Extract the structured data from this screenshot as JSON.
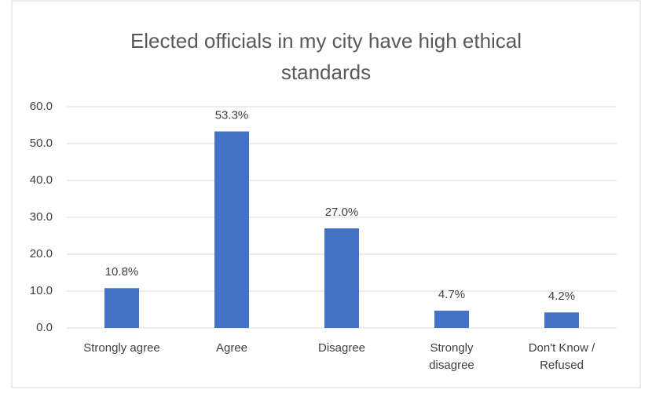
{
  "chart_data": {
    "type": "bar",
    "title": "Elected officials in my city have high ethical standards",
    "categories": [
      "Strongly agree",
      "Agree",
      "Disagree",
      "Strongly disagree",
      "Don't Know / Refused"
    ],
    "values": [
      10.8,
      53.3,
      27.0,
      4.7,
      4.2
    ],
    "value_labels": [
      "10.8%",
      "53.3%",
      "27.0%",
      "4.7%",
      "4.2%"
    ],
    "color": "#4472c4",
    "ylim": [
      0,
      60
    ],
    "yticks": [
      {
        "value": 0,
        "label": "0.0"
      },
      {
        "value": 10,
        "label": "10.0"
      },
      {
        "value": 20,
        "label": "20.0"
      },
      {
        "value": 30,
        "label": "30.0"
      },
      {
        "value": 40,
        "label": "40.0"
      },
      {
        "value": 50,
        "label": "50.0"
      },
      {
        "value": 60,
        "label": "60.0"
      }
    ],
    "grid": true
  }
}
